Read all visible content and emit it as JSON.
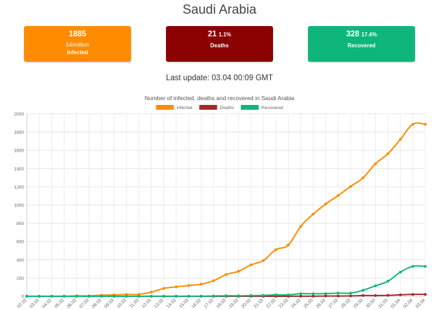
{
  "page": {
    "title": "Saudi Arabia",
    "last_update": "Last update: 03.04 00:09 GMT"
  },
  "cards": {
    "infected": {
      "value": "1885",
      "sub": "54/million",
      "label": "Infected",
      "color": "#ff8c00"
    },
    "deaths": {
      "value": "21",
      "pct": "1.1%",
      "label": "Deaths",
      "color": "#8b0000"
    },
    "recovered": {
      "value": "328",
      "pct": "17.4%",
      "label": "Recovered",
      "color": "#0fb67c"
    }
  },
  "chart_data": {
    "type": "line",
    "title": "Number of infected, deaths and recovered in Saudi Arabia",
    "categories": [
      "02.03",
      "03.03",
      "04.03",
      "05.03",
      "06.03",
      "07.03",
      "08.03",
      "09.03",
      "10.03",
      "11.03",
      "12.03",
      "13.03",
      "14.03",
      "15.03",
      "16.03",
      "17.03",
      "18.03",
      "19.03",
      "20.03",
      "21.03",
      "22.03",
      "23.03",
      "24.03",
      "25.03",
      "26.03",
      "27.03",
      "28.03",
      "29.03",
      "30.03",
      "31.03",
      "01.04",
      "02.04",
      "03.04"
    ],
    "ylim": [
      0,
      2000
    ],
    "yticks": [
      0,
      200,
      400,
      600,
      800,
      1000,
      1200,
      1400,
      1600,
      1800,
      2000
    ],
    "grid": true,
    "legend_position": "top",
    "series": [
      {
        "name": "Infected",
        "color": "#ff8c00",
        "values": [
          1,
          1,
          1,
          1,
          5,
          5,
          11,
          15,
          20,
          21,
          45,
          86,
          103,
          118,
          133,
          171,
          238,
          274,
          344,
          392,
          511,
          562,
          767,
          900,
          1012,
          1104,
          1203,
          1299,
          1453,
          1563,
          1720,
          1885,
          1885
        ]
      },
      {
        "name": "Deaths",
        "color": "#a52a2a",
        "values": [
          0,
          0,
          0,
          0,
          0,
          0,
          0,
          0,
          0,
          0,
          0,
          0,
          0,
          0,
          0,
          0,
          0,
          0,
          0,
          0,
          0,
          0,
          1,
          1,
          3,
          3,
          4,
          8,
          8,
          10,
          16,
          21,
          21
        ]
      },
      {
        "name": "Recovered",
        "color": "#0fb67c",
        "values": [
          0,
          0,
          0,
          0,
          0,
          0,
          0,
          0,
          0,
          0,
          1,
          1,
          1,
          1,
          1,
          3,
          6,
          6,
          8,
          10,
          16,
          16,
          28,
          28,
          29,
          35,
          35,
          66,
          115,
          165,
          264,
          328,
          328
        ]
      }
    ]
  }
}
